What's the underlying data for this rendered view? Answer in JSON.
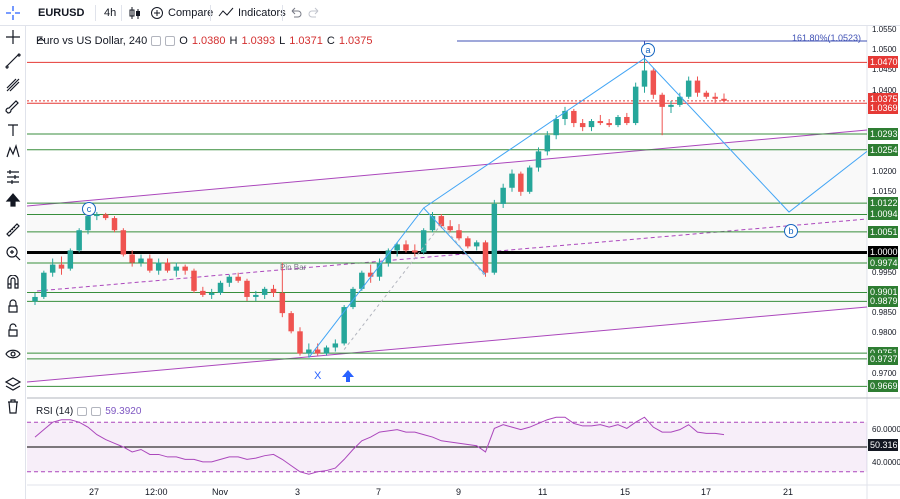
{
  "toolbar": {
    "symbol": "EURUSD",
    "interval": "4h",
    "compare_label": "Compare",
    "indicators_label": "Indicators"
  },
  "legend": {
    "title": "Euro vs US Dollar, 240",
    "o_label": "O",
    "o_value": "1.0380",
    "h_label": "H",
    "h_value": "1.0393",
    "l_label": "L",
    "l_value": "1.0371",
    "c_label": "C",
    "c_value": "1.0375"
  },
  "rsi": {
    "label": "RSI (14)",
    "value": "59.3920",
    "axis": [
      "60.0000",
      "40.0000"
    ],
    "level_tag": "50.3161"
  },
  "fib_label": "161.80%(1.0523)",
  "pattern_points": {
    "a": "a",
    "b": "b",
    "c": "c",
    "x": "X"
  },
  "pin_bar": "Pin Bar",
  "price_axis": [
    "1.0550",
    "1.0500",
    "1.0450",
    "1.0400",
    "1.0350",
    "1.0200",
    "1.0150",
    "1.0100",
    "1.0050",
    "1.0000",
    "0.9950",
    "0.9850",
    "0.9800",
    "0.9750",
    "0.9700"
  ],
  "price_tags": {
    "t1": "1.0470",
    "t2": "1.0375",
    "t3": "1.0369",
    "t4": "1.0293",
    "t5": "1.0254",
    "t6": "1.0122",
    "t7": "1.0094",
    "t8": "1.0051",
    "t9": "1.0000",
    "t10": "0.9974",
    "t11": "0.9901",
    "t12": "0.9879",
    "t13": "0.9751",
    "t14": "0.9737",
    "t15": "0.9669"
  },
  "time_axis": [
    "27",
    "12:00",
    "Nov",
    "3",
    "7",
    "9",
    "11",
    "15",
    "17",
    "21"
  ],
  "colors": {
    "up": "#26a69a",
    "down": "#ef5350",
    "support": "#388e3c",
    "resistance": "#e53935",
    "channel": "#ab47bc",
    "pattern": "#42a5f5",
    "rsi": "#ab47bc"
  },
  "sidebar_icons": [
    "crosshair-icon",
    "trendline-icon",
    "pitchfork-icon",
    "brush-icon",
    "text-icon",
    "pattern-icon",
    "forecast-icon",
    "arrow-icon",
    "ruler-icon",
    "zoom-in-icon",
    "magnet-icon",
    "lock-drawing-icon",
    "unlock-icon",
    "eye-icon",
    "layers-icon",
    "trash-icon"
  ],
  "chart_data": {
    "type": "candlestick",
    "title": "Euro vs US Dollar, 240",
    "ylim": [
      0.965,
      1.056
    ],
    "candles": [
      [
        0.9879,
        0.99,
        0.987,
        0.989
      ],
      [
        0.989,
        0.9955,
        0.9885,
        0.995
      ],
      [
        0.995,
        0.9985,
        0.994,
        0.997
      ],
      [
        0.997,
        0.999,
        0.9945,
        0.996
      ],
      [
        0.996,
        1.001,
        0.9955,
        1.0005
      ],
      [
        1.0005,
        1.006,
        1.0,
        1.0055
      ],
      [
        1.0055,
        1.0095,
        1.0045,
        1.009
      ],
      [
        1.009,
        1.01,
        1.008,
        1.0094
      ],
      [
        1.0094,
        1.0098,
        1.008,
        1.0085
      ],
      [
        1.0085,
        1.009,
        1.005,
        1.0055
      ],
      [
        1.0055,
        1.006,
        0.999,
        0.9995
      ],
      [
        0.9995,
        1.0005,
        0.9965,
        0.9975
      ],
      [
        0.9975,
        0.9995,
        0.9965,
        0.9985
      ],
      [
        0.9985,
        0.9995,
        0.995,
        0.9955
      ],
      [
        0.9955,
        0.9985,
        0.9945,
        0.9975
      ],
      [
        0.9975,
        0.9985,
        0.995,
        0.9955
      ],
      [
        0.9955,
        0.9975,
        0.994,
        0.9965
      ],
      [
        0.9965,
        0.997,
        0.9945,
        0.9955
      ],
      [
        0.9955,
        0.996,
        0.99,
        0.9905
      ],
      [
        0.9905,
        0.9915,
        0.989,
        0.9895
      ],
      [
        0.9895,
        0.991,
        0.9885,
        0.99
      ],
      [
        0.99,
        0.993,
        0.9895,
        0.9925
      ],
      [
        0.9925,
        0.9945,
        0.9915,
        0.994
      ],
      [
        0.994,
        0.995,
        0.9925,
        0.993
      ],
      [
        0.993,
        0.9935,
        0.988,
        0.989
      ],
      [
        0.989,
        0.9905,
        0.988,
        0.9895
      ],
      [
        0.9895,
        0.9915,
        0.9885,
        0.991
      ],
      [
        0.991,
        0.992,
        0.989,
        0.99
      ],
      [
        0.99,
        0.9975,
        0.984,
        0.985
      ],
      [
        0.985,
        0.9855,
        0.98,
        0.9805
      ],
      [
        0.9805,
        0.9815,
        0.9745,
        0.975
      ],
      [
        0.975,
        0.9775,
        0.974,
        0.976
      ],
      [
        0.976,
        0.9775,
        0.9745,
        0.975
      ],
      [
        0.975,
        0.977,
        0.9745,
        0.9765
      ],
      [
        0.9765,
        0.9785,
        0.9755,
        0.9775
      ],
      [
        0.9775,
        0.987,
        0.977,
        0.9865
      ],
      [
        0.9865,
        0.9915,
        0.986,
        0.991
      ],
      [
        0.991,
        0.9955,
        0.9905,
        0.995
      ],
      [
        0.995,
        0.997,
        0.9925,
        0.994
      ],
      [
        0.994,
        0.9985,
        0.993,
        0.9975
      ],
      [
        0.9975,
        1.001,
        0.9965,
        1.0005
      ],
      [
        1.0005,
        1.0025,
        0.999,
        1.002
      ],
      [
        1.002,
        1.003,
        1.0,
        1.0005
      ],
      [
        1.0005,
        1.002,
        0.999,
        1.0
      ],
      [
        1.0,
        1.006,
        0.9995,
        1.0055
      ],
      [
        1.0055,
        1.01,
        1.005,
        1.009
      ],
      [
        1.009,
        1.0095,
        1.006,
        1.0065
      ],
      [
        1.0065,
        1.008,
        1.005,
        1.0055
      ],
      [
        1.0055,
        1.007,
        1.003,
        1.0035
      ],
      [
        1.0035,
        1.004,
        1.001,
        1.0015
      ],
      [
        1.0015,
        1.003,
        1.0005,
        1.0025
      ],
      [
        1.0025,
        1.003,
        0.994,
        0.995
      ],
      [
        0.995,
        1.013,
        0.9945,
        1.012
      ],
      [
        1.012,
        1.017,
        1.011,
        1.016
      ],
      [
        1.016,
        1.0205,
        1.015,
        1.0195
      ],
      [
        1.0195,
        1.02,
        1.014,
        1.015
      ],
      [
        1.015,
        1.0215,
        1.0145,
        1.021
      ],
      [
        1.021,
        1.026,
        1.02,
        1.025
      ],
      [
        1.025,
        1.03,
        1.024,
        1.029
      ],
      [
        1.029,
        1.034,
        1.028,
        1.033
      ],
      [
        1.033,
        1.036,
        1.0315,
        1.035
      ],
      [
        1.035,
        1.0355,
        1.031,
        1.032
      ],
      [
        1.032,
        1.033,
        1.03,
        1.031
      ],
      [
        1.031,
        1.033,
        1.03,
        1.0325
      ],
      [
        1.0325,
        1.034,
        1.0315,
        1.032
      ],
      [
        1.032,
        1.033,
        1.031,
        1.0315
      ],
      [
        1.0315,
        1.034,
        1.031,
        1.0335
      ],
      [
        1.0335,
        1.0345,
        1.0315,
        1.032
      ],
      [
        1.032,
        1.042,
        1.0315,
        1.041
      ],
      [
        1.041,
        1.048,
        1.0395,
        1.045
      ],
      [
        1.045,
        1.0455,
        1.038,
        1.039
      ],
      [
        1.039,
        1.0395,
        1.029,
        1.036
      ],
      [
        1.036,
        1.0375,
        1.0345,
        1.0365
      ],
      [
        1.0365,
        1.0395,
        1.036,
        1.0385
      ],
      [
        1.0385,
        1.0435,
        1.038,
        1.0425
      ],
      [
        1.0425,
        1.0435,
        1.0385,
        1.0395
      ],
      [
        1.0395,
        1.04,
        1.038,
        1.0385
      ],
      [
        1.0385,
        1.0395,
        1.037,
        1.038
      ],
      [
        1.038,
        1.0393,
        1.0371,
        1.0375
      ]
    ],
    "rsi_values": [
      58,
      64,
      70,
      72,
      72,
      70,
      66,
      60,
      56,
      53,
      50,
      46,
      48,
      44,
      44,
      42,
      42,
      40,
      40,
      38,
      38,
      40,
      42,
      42,
      40,
      41,
      43,
      44,
      40,
      35,
      30,
      28,
      30,
      31,
      33,
      40,
      48,
      55,
      58,
      62,
      63,
      64,
      62,
      62,
      60,
      58,
      55,
      54,
      53,
      52,
      51,
      46,
      65,
      68,
      66,
      64,
      66,
      69,
      72,
      74,
      74,
      69,
      67,
      67,
      68,
      66,
      68,
      65,
      70,
      74,
      66,
      62,
      62,
      64,
      68,
      62,
      61,
      61,
      60
    ]
  }
}
